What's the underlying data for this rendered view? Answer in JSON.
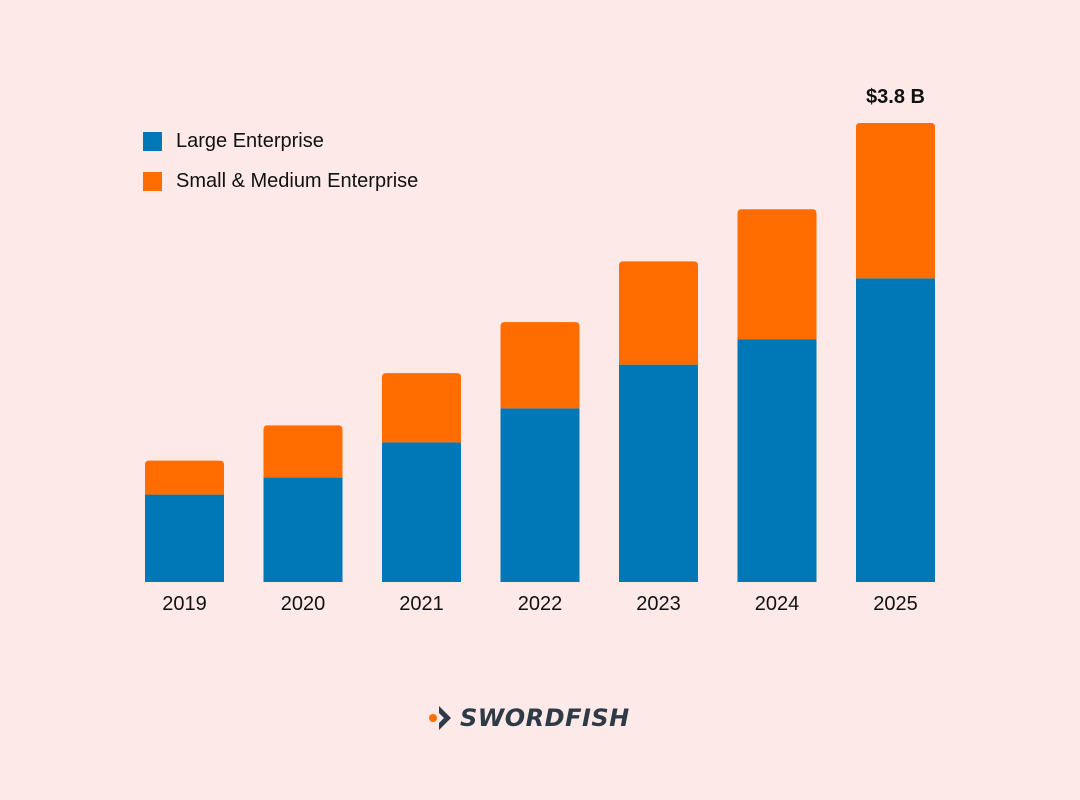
{
  "chart_data": {
    "type": "bar",
    "stacked": true,
    "categories": [
      "2019",
      "2020",
      "2021",
      "2022",
      "2023",
      "2024",
      "2025"
    ],
    "series": [
      {
        "name": "Large Enterprise",
        "color": "#0077b6",
        "values": [
          0.72,
          0.86,
          1.15,
          1.43,
          1.79,
          2.0,
          2.5
        ]
      },
      {
        "name": "Small & Medium Enterprise",
        "color": "#ff6d00",
        "values": [
          0.28,
          0.43,
          0.57,
          0.71,
          0.85,
          1.07,
          1.28
        ]
      }
    ],
    "total_label": "$3.8 B",
    "ylim": [
      0,
      3.78
    ],
    "legend_position": "top-left",
    "grid": false
  },
  "branding": {
    "name": "SWORDFISH",
    "mark_color": "#ff6d00",
    "text_color": "#2f3a47"
  }
}
